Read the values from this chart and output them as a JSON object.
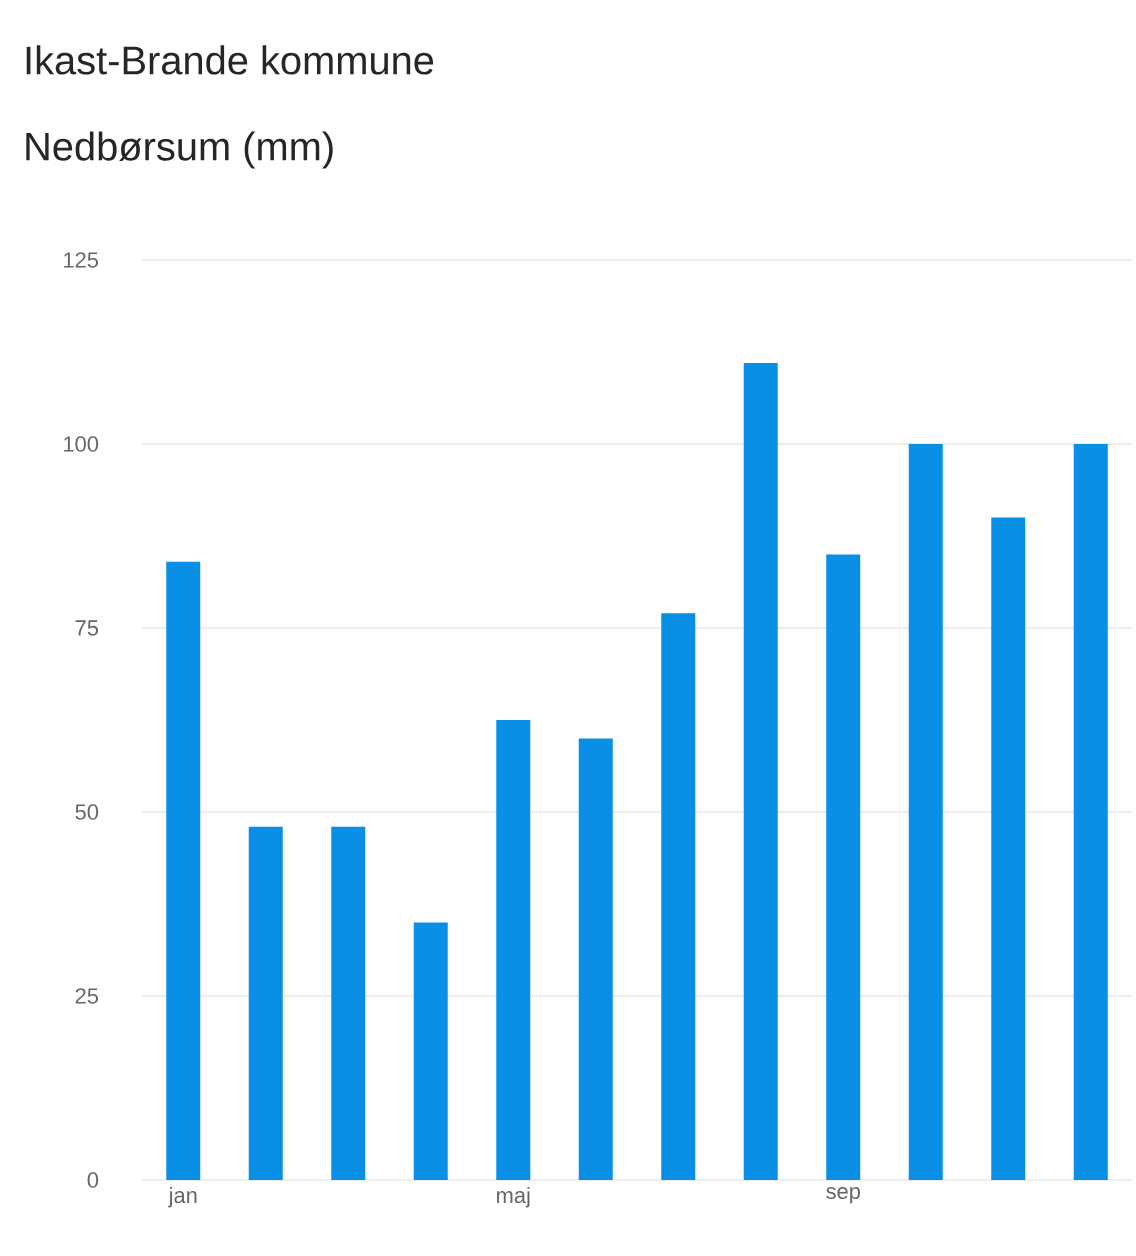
{
  "chart_data": {
    "type": "bar",
    "title": "Ikast-Brande kommune",
    "subtitle": "Nedbørsum (mm)",
    "categories": [
      "jan",
      null,
      null,
      null,
      "maj",
      null,
      null,
      null,
      "sep",
      null,
      null,
      null
    ],
    "values": [
      84,
      48,
      48,
      35,
      62.5,
      60,
      77,
      111,
      85,
      100,
      90,
      100
    ],
    "color": "#0a8fe6",
    "ylim": [
      0,
      125
    ],
    "yticks": [
      0,
      25,
      50,
      75,
      100,
      125
    ],
    "grid": "y"
  }
}
